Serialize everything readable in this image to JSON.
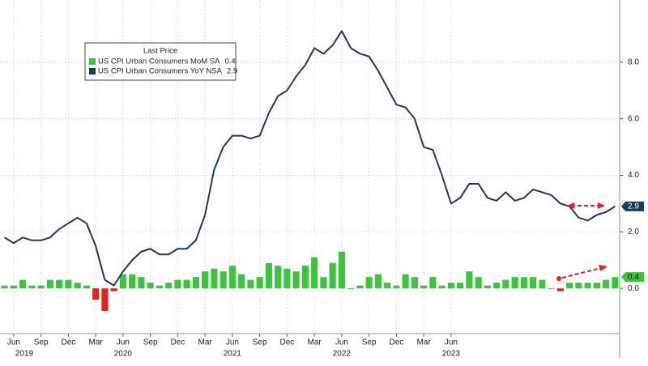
{
  "chart_data": {
    "type": "combo",
    "legend_title": "Last Price",
    "categories": [
      null,
      "Jun",
      null,
      null,
      "Sep",
      null,
      null,
      "Dec",
      null,
      null,
      "Mar",
      null,
      null,
      "Jun",
      null,
      null,
      "Sep",
      null,
      null,
      "Dec",
      null,
      null,
      "Mar",
      null,
      null,
      "Jun",
      null,
      null,
      "Sep",
      null,
      null,
      "Dec",
      null,
      null,
      "Mar",
      null,
      null,
      "Jun",
      null,
      null,
      "Sep",
      null,
      null,
      "Dec",
      null,
      null,
      "Mar",
      null,
      null,
      "Jun",
      null,
      null,
      null,
      null,
      null,
      null,
      null,
      null,
      null,
      null,
      null,
      null,
      null,
      null,
      null,
      null,
      null,
      null
    ],
    "years": [
      "2019",
      "2020",
      "2021",
      "2022",
      "2023"
    ],
    "series": [
      {
        "name": "US CPI Urban Consumers MoM SA",
        "type": "bar",
        "color": "#3cc43c",
        "negative_color": "#e3231c",
        "values": [
          0.1,
          0.1,
          0.3,
          0.1,
          0.1,
          0.3,
          0.3,
          0.3,
          0.2,
          0.1,
          -0.4,
          -0.8,
          -0.1,
          0.5,
          0.5,
          0.4,
          0.2,
          0.1,
          0.2,
          0.3,
          0.3,
          0.4,
          0.6,
          0.7,
          0.6,
          0.8,
          0.5,
          0.3,
          0.4,
          0.9,
          0.8,
          0.7,
          0.6,
          0.8,
          1.1,
          0.4,
          0.9,
          1.3,
          0.0,
          0.1,
          0.4,
          0.5,
          0.2,
          0.1,
          0.5,
          0.4,
          0.1,
          0.4,
          0.1,
          0.2,
          0.2,
          0.6,
          0.4,
          0.1,
          0.2,
          0.3,
          0.4,
          0.4,
          0.4,
          0.3,
          0.0,
          -0.1,
          0.2,
          0.2,
          0.2,
          0.2,
          0.3,
          0.4
        ]
      },
      {
        "name": "US CPI Urban Consumers YoY NSA",
        "type": "line",
        "color": "#1b3a5c",
        "values": [
          1.8,
          1.6,
          1.8,
          1.7,
          1.7,
          1.8,
          2.1,
          2.3,
          2.5,
          2.3,
          1.5,
          0.3,
          0.1,
          0.6,
          1.0,
          1.3,
          1.4,
          1.2,
          1.2,
          1.4,
          1.4,
          1.7,
          2.6,
          4.2,
          5.0,
          5.4,
          5.4,
          5.3,
          5.4,
          6.2,
          6.8,
          7.0,
          7.5,
          7.9,
          8.5,
          8.3,
          8.6,
          9.1,
          8.5,
          8.3,
          8.2,
          7.7,
          7.1,
          6.5,
          6.4,
          6.0,
          5.0,
          4.9,
          4.0,
          3.0,
          3.2,
          3.7,
          3.7,
          3.2,
          3.1,
          3.4,
          3.1,
          3.2,
          3.5,
          3.4,
          3.3,
          3.0,
          2.9,
          2.5,
          2.4,
          2.6,
          2.7,
          2.9
        ]
      }
    ],
    "ylim": [
      -1.6,
      10.2
    ],
    "yticks": [
      {
        "value": 0,
        "label": "0.0"
      },
      {
        "value": 2,
        "label": "2.0"
      },
      {
        "value": 4,
        "label": "4.0"
      },
      {
        "value": 6,
        "label": "6.0"
      },
      {
        "value": 8,
        "label": "8.0"
      }
    ],
    "grid": true
  }
}
